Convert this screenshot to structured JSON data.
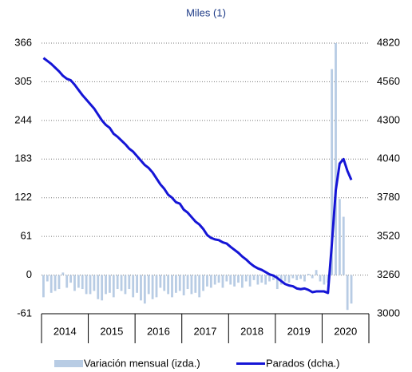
{
  "chart_data": {
    "type": "bar_line",
    "title": "Miles (1)",
    "years": [
      "2014",
      "2015",
      "2016",
      "2017",
      "2018",
      "2019",
      "2020"
    ],
    "ylim": [
      -61,
      366
    ],
    "yticks": [
      -61,
      0,
      61,
      122,
      183,
      244,
      305,
      366
    ],
    "y2lim": [
      3000,
      4820
    ],
    "y2ticks": [
      3000,
      3260,
      3520,
      3780,
      4040,
      4300,
      4560,
      4820
    ],
    "grid": true,
    "series": [
      {
        "name": "Variación mensual (izda.)",
        "type": "bar",
        "color": "#b8cce4",
        "values": [
          -35,
          -10,
          -28,
          -25,
          -22,
          4,
          -20,
          -12,
          -25,
          -20,
          -22,
          -30,
          -30,
          -25,
          -38,
          -40,
          -30,
          -28,
          -35,
          -22,
          -25,
          -30,
          -22,
          -35,
          -28,
          -40,
          -45,
          -30,
          -38,
          -35,
          -20,
          -25,
          -30,
          -35,
          -28,
          -25,
          -32,
          -22,
          -30,
          -28,
          -35,
          -25,
          -18,
          -20,
          -15,
          -12,
          -20,
          -10,
          -15,
          -18,
          -12,
          -20,
          -10,
          -18,
          -8,
          -15,
          -12,
          -15,
          -10,
          -8,
          -22,
          -15,
          -10,
          -12,
          -5,
          -8,
          -6,
          -10,
          2,
          -5,
          8,
          -10,
          -15,
          -12,
          325,
          366,
          120,
          92,
          -55,
          -45
        ]
      },
      {
        "name": "Parados (dcha.)",
        "type": "line",
        "axis": "y2",
        "color": "#1515d6",
        "values": [
          4720,
          4700,
          4680,
          4655,
          4630,
          4600,
          4580,
          4570,
          4540,
          4505,
          4470,
          4440,
          4410,
          4380,
          4340,
          4300,
          4270,
          4250,
          4210,
          4190,
          4165,
          4140,
          4110,
          4090,
          4060,
          4030,
          4000,
          3980,
          3950,
          3910,
          3870,
          3840,
          3800,
          3780,
          3750,
          3740,
          3700,
          3680,
          3650,
          3620,
          3600,
          3570,
          3530,
          3510,
          3500,
          3495,
          3480,
          3472,
          3450,
          3430,
          3410,
          3385,
          3365,
          3340,
          3320,
          3305,
          3295,
          3280,
          3265,
          3257,
          3240,
          3220,
          3200,
          3190,
          3185,
          3170,
          3165,
          3170,
          3160,
          3145,
          3150,
          3150,
          3150,
          3140,
          3470,
          3830,
          4010,
          4040,
          3960,
          3900
        ]
      }
    ]
  }
}
